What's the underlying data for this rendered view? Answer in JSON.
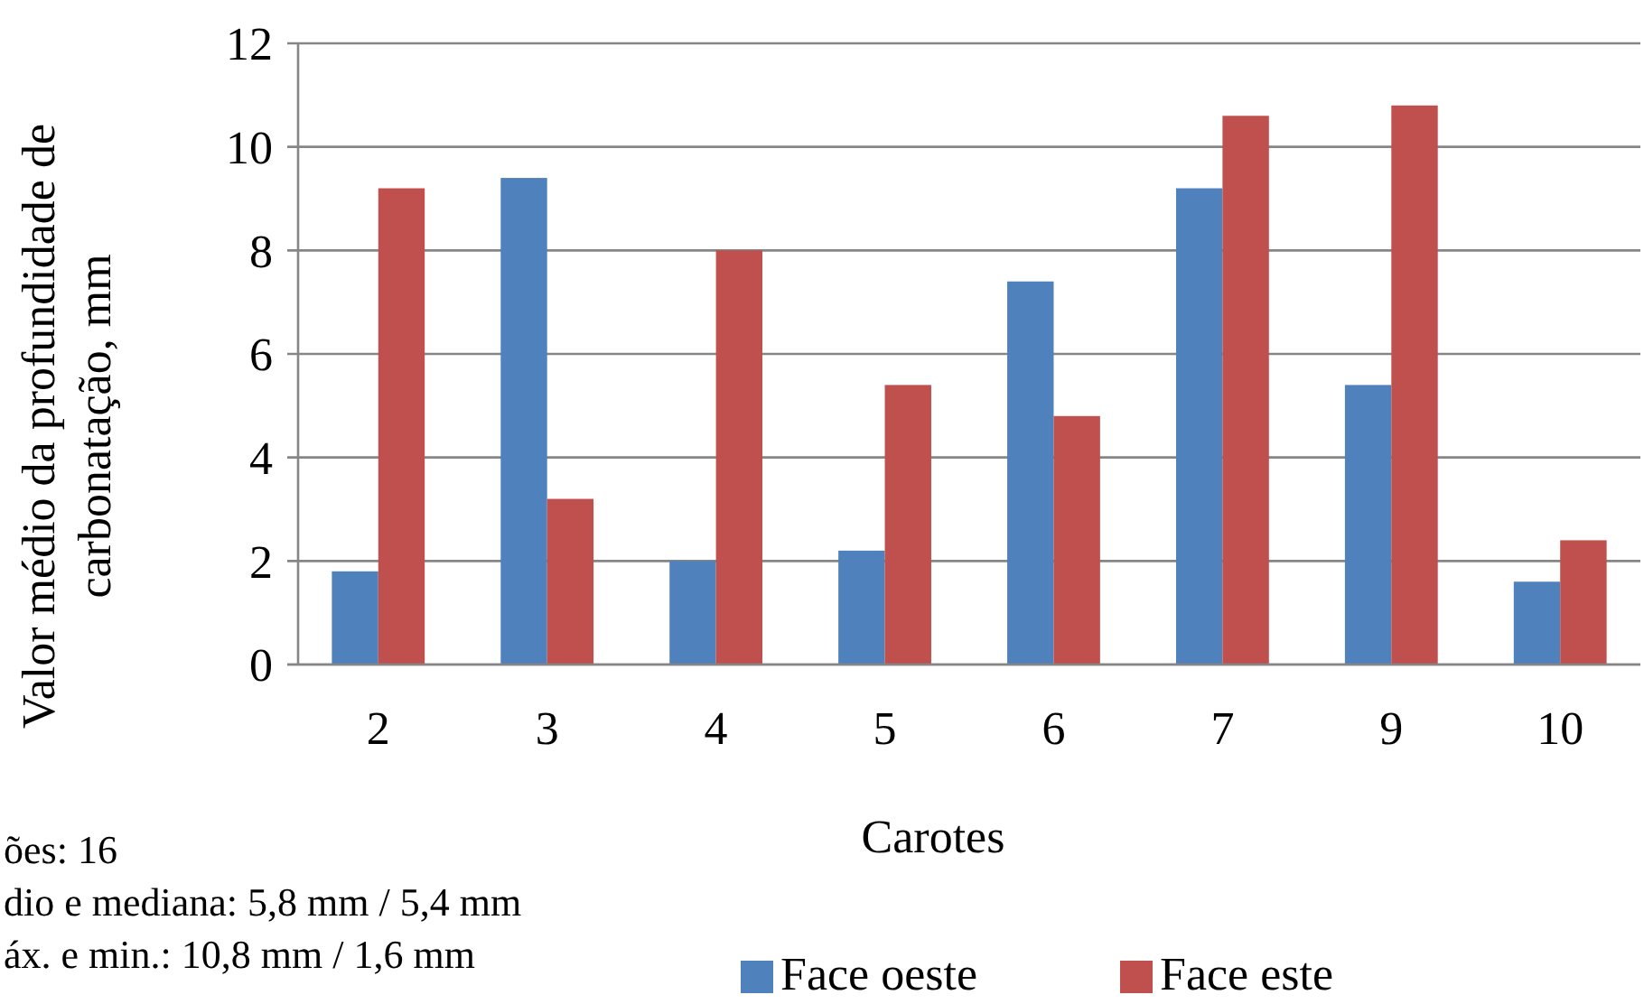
{
  "chart_data": {
    "type": "bar",
    "xlabel": "Carotes",
    "ylabel": "Valor médio da profundidade de\ncarbonatação, mm",
    "categories": [
      "2",
      "3",
      "4",
      "5",
      "6",
      "7",
      "9",
      "10"
    ],
    "series": [
      {
        "name": "Face oeste",
        "color": "#4f81bd",
        "values": [
          1.8,
          9.4,
          2.0,
          2.2,
          7.4,
          9.2,
          5.4,
          1.6
        ]
      },
      {
        "name": "Face este",
        "color": "#c0504d",
        "values": [
          9.2,
          3.2,
          8.0,
          5.4,
          4.8,
          10.6,
          10.8,
          2.4
        ]
      }
    ],
    "ylim": [
      0,
      12
    ],
    "yticks": [
      0,
      2,
      4,
      6,
      8,
      10,
      12
    ],
    "grid": "y",
    "legend": "bottom",
    "annotations": [
      "ões: 16",
      "dio e mediana: 5,8 mm / 5,4 mm",
      "áx. e min.: 10,8 mm / 1,6 mm"
    ]
  }
}
